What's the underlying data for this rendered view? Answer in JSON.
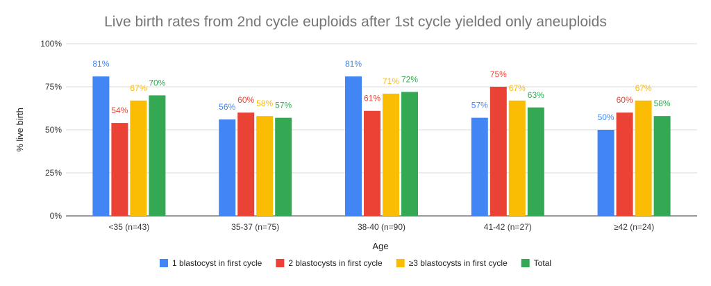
{
  "chart_data": {
    "type": "bar",
    "title": "Live birth rates from 2nd cycle euploids after 1st cycle yielded only aneuploids",
    "xlabel": "Age",
    "ylabel": "% live birth",
    "ylim": [
      0,
      100
    ],
    "yticks": [
      "0%",
      "25%",
      "50%",
      "75%",
      "100%"
    ],
    "ytick_values": [
      0,
      25,
      50,
      75,
      100
    ],
    "grid": true,
    "legend_position": "bottom",
    "categories": [
      "<35 (n=43)",
      "35-37 (n=75)",
      "38-40 (n=90)",
      "41-42 (n=27)",
      "≥42 (n=24)"
    ],
    "series": [
      {
        "name": "1 blastocyst in first cycle",
        "color": "#4285F4",
        "values": [
          81,
          56,
          81,
          57,
          50
        ],
        "labels": [
          "81%",
          "56%",
          "81%",
          "57%",
          "50%"
        ]
      },
      {
        "name": "2 blastocysts in first cycle",
        "color": "#EA4335",
        "values": [
          54,
          60,
          61,
          75,
          60
        ],
        "labels": [
          "54%",
          "60%",
          "61%",
          "75%",
          "60%"
        ]
      },
      {
        "name": "≥3 blastocysts in first cycle",
        "color": "#FBBC04",
        "values": [
          67,
          58,
          71,
          67,
          67
        ],
        "labels": [
          "67%",
          "58%",
          "71%",
          "67%",
          "67%"
        ]
      },
      {
        "name": "Total",
        "color": "#34A853",
        "values": [
          70,
          57,
          72,
          63,
          58
        ],
        "labels": [
          "70%",
          "57%",
          "72%",
          "63%",
          "58%"
        ]
      }
    ]
  }
}
